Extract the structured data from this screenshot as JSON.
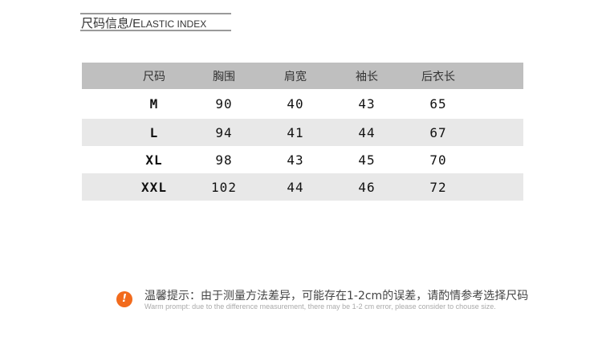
{
  "section": {
    "title_zh": "尺码信息/",
    "title_en_initial": "E",
    "title_en_rest": "LASTIC INDEX"
  },
  "table": {
    "headers": [
      "尺码",
      "胸围",
      "肩宽",
      "袖长",
      "后衣长"
    ],
    "rows": [
      [
        "M",
        "90",
        "40",
        "43",
        "65"
      ],
      [
        "L",
        "94",
        "41",
        "44",
        "67"
      ],
      [
        "XL",
        "98",
        "43",
        "45",
        "70"
      ],
      [
        "XXL",
        "102",
        "44",
        "46",
        "72"
      ]
    ]
  },
  "notice": {
    "icon": "exclamation-icon",
    "icon_glyph": "!",
    "accent_color": "#f26b1d",
    "text_zh": "温馨提示：由于测量方法差异，可能存在1-2cm的误差，请酌情参考选择尺码",
    "text_en": "Warm prompt: due to the difference measurement, there may be 1-2 cm error, please consider to chouse size."
  }
}
